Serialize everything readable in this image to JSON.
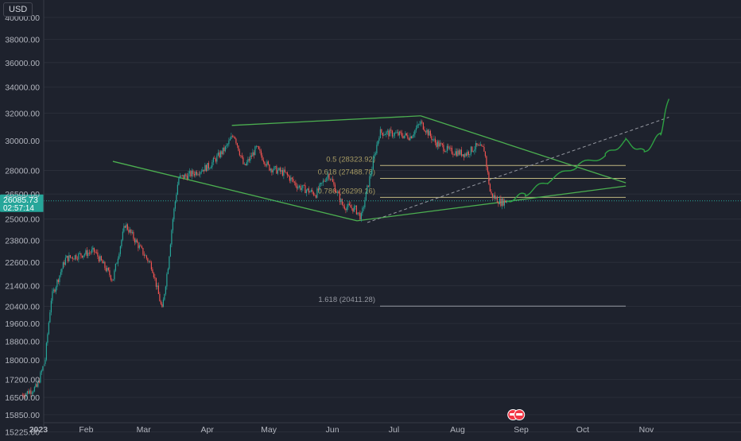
{
  "currency_label": "USD",
  "colors": {
    "background": "#1e222d",
    "up_candle": "#26a69a",
    "down_candle": "#ef5350",
    "pattern_lines": "#4caf50",
    "projection": "#2ea043",
    "fib_lines": "#bfb680",
    "fib_label": "#a69a63",
    "price_badge": "#26a69a",
    "axis_text": "#b2b5be"
  },
  "price_axis": {
    "labels": [
      "40000.00",
      "38000.00",
      "36000.00",
      "34000.00",
      "32000.00",
      "30000.00",
      "28000.00",
      "26500.00",
      "25000.00",
      "23800.00",
      "22600.00",
      "21400.00",
      "20400.00",
      "19600.00",
      "18800.00",
      "18000.00",
      "17200.00",
      "16500.00",
      "15850.00",
      "15225.00"
    ]
  },
  "time_axis": {
    "labels": [
      "2023",
      "Feb",
      "Mar",
      "Apr",
      "May",
      "Jun",
      "Jul",
      "Aug",
      "Sep",
      "Oct",
      "Nov"
    ]
  },
  "current_price": {
    "price": "26085.73",
    "countdown": "02:57:14"
  },
  "fib_levels": [
    {
      "label": "0.5 (28323.92)",
      "price": 28323.92
    },
    {
      "label": "0.618 (27488.78)",
      "price": 27488.78
    },
    {
      "label": "0.786 (26299.16)",
      "price": 26299.16
    },
    {
      "label": "1.618 (20411.28)",
      "price": 20411.28
    }
  ],
  "chart_data": {
    "type": "candlestick",
    "symbol_currency": "USD",
    "y_scale": "log",
    "ylim": [
      15100,
      41500
    ],
    "x_labels": [
      "2023",
      "Feb",
      "Mar",
      "Apr",
      "May",
      "Jun",
      "Jul",
      "Aug",
      "Sep",
      "Oct",
      "Nov"
    ],
    "last_price": 26085.73,
    "price_path": [
      [
        "2023-01-01",
        16600
      ],
      [
        "2023-01-08",
        16900
      ],
      [
        "2023-01-12",
        18000
      ],
      [
        "2023-01-15",
        20800
      ],
      [
        "2023-01-22",
        22800
      ],
      [
        "2023-01-29",
        23000
      ],
      [
        "2023-02-05",
        23200
      ],
      [
        "2023-02-14",
        21700
      ],
      [
        "2023-02-20",
        24700
      ],
      [
        "2023-02-27",
        23400
      ],
      [
        "2023-03-05",
        22400
      ],
      [
        "2023-03-10",
        20200
      ],
      [
        "2023-03-13",
        22500
      ],
      [
        "2023-03-15",
        24800
      ],
      [
        "2023-03-18",
        27500
      ],
      [
        "2023-03-25",
        27800
      ],
      [
        "2023-04-02",
        28300
      ],
      [
        "2023-04-10",
        29500
      ],
      [
        "2023-04-14",
        30500
      ],
      [
        "2023-04-19",
        28200
      ],
      [
        "2023-04-25",
        29500
      ],
      [
        "2023-05-01",
        28200
      ],
      [
        "2023-05-09",
        27800
      ],
      [
        "2023-05-15",
        27000
      ],
      [
        "2023-05-24",
        26500
      ],
      [
        "2023-05-30",
        27800
      ],
      [
        "2023-06-06",
        25800
      ],
      [
        "2023-06-12",
        25600
      ],
      [
        "2023-06-15",
        25100
      ],
      [
        "2023-06-20",
        28000
      ],
      [
        "2023-06-24",
        30600
      ],
      [
        "2023-07-01",
        30500
      ],
      [
        "2023-07-09",
        30300
      ],
      [
        "2023-07-14",
        31300
      ],
      [
        "2023-07-21",
        29900
      ],
      [
        "2023-07-28",
        29300
      ],
      [
        "2023-08-05",
        29100
      ],
      [
        "2023-08-10",
        29600
      ],
      [
        "2023-08-14",
        29400
      ],
      [
        "2023-08-17",
        26500
      ],
      [
        "2023-08-22",
        26000
      ],
      [
        "2023-08-25",
        26085
      ]
    ],
    "projection_path": [
      [
        "2023-08-25",
        26085
      ],
      [
        "2023-09-03",
        26500
      ],
      [
        "2023-09-14",
        27300
      ],
      [
        "2023-09-28",
        28300
      ],
      [
        "2023-10-12",
        29000
      ],
      [
        "2023-10-22",
        30000
      ],
      [
        "2023-10-31",
        29200
      ],
      [
        "2023-11-08",
        30500
      ],
      [
        "2023-11-12",
        33200
      ]
    ],
    "trendlines": [
      {
        "from": [
          "2023-04-13",
          31100
        ],
        "to": [
          "2023-07-14",
          31800
        ]
      },
      {
        "from": [
          "2023-07-14",
          31800
        ],
        "to": [
          "2023-10-22",
          27200
        ]
      },
      {
        "from": [
          "2023-02-14",
          28600
        ],
        "to": [
          "2023-06-13",
          24900
        ]
      },
      {
        "from": [
          "2023-06-13",
          24900
        ],
        "to": [
          "2023-10-22",
          27000
        ]
      }
    ],
    "dashed_projection": {
      "from": [
        "2023-06-18",
        24800
      ],
      "to": [
        "2023-11-12",
        31700
      ]
    },
    "fibonacci": [
      {
        "ratio": 0.5,
        "price": 28323.92
      },
      {
        "ratio": 0.618,
        "price": 27488.78
      },
      {
        "ratio": 0.786,
        "price": 26299.16
      },
      {
        "ratio": 1.618,
        "price": 20411.28
      }
    ]
  }
}
